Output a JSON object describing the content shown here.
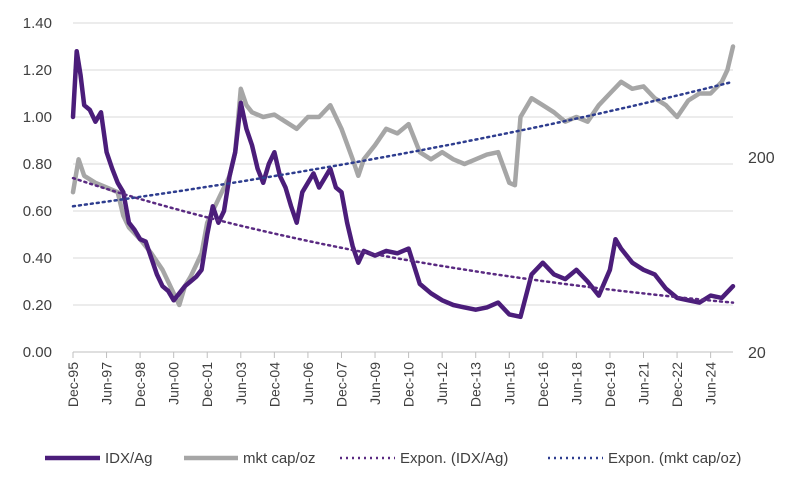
{
  "chart_data": {
    "type": "line",
    "title": "",
    "xlabel": "",
    "ylabel": "",
    "ylim": [
      0,
      1.4
    ],
    "y_ticks": [
      "0.00",
      "0.20",
      "0.40",
      "0.60",
      "0.80",
      "1.00",
      "1.20",
      "1.40"
    ],
    "y2_scale": "log",
    "y2_ticks": [
      "20",
      "200"
    ],
    "x_ticks": [
      "Dec-95",
      "Jun-97",
      "Dec-98",
      "Jun-00",
      "Dec-01",
      "Jun-03",
      "Dec-04",
      "Jun-06",
      "Dec-07",
      "Jun-09",
      "Dec-10",
      "Jun-12",
      "Dec-13",
      "Jun-15",
      "Dec-16",
      "Jun-18",
      "Dec-19",
      "Jun-21",
      "Dec-22",
      "Jun-24"
    ],
    "x_range": [
      "1995-12",
      "2025-06"
    ],
    "grid": "horizontal",
    "legend_position": "bottom",
    "colors": {
      "idx_ag": "#4b1d7a",
      "mkt_cap": "#a6a6a6",
      "trend_idx": "#5a2a82",
      "trend_mkt": "#2e3d8f"
    },
    "series": [
      {
        "name": "IDX/Ag",
        "axis": "left",
        "x": [
          "1995-12",
          "1996-02",
          "1996-04",
          "1996-06",
          "1996-09",
          "1996-12",
          "1997-03",
          "1997-06",
          "1997-09",
          "1997-12",
          "1998-03",
          "1998-06",
          "1998-09",
          "1998-12",
          "1999-03",
          "1999-06",
          "1999-09",
          "1999-12",
          "2000-03",
          "2000-06",
          "2000-09",
          "2000-12",
          "2001-03",
          "2001-06",
          "2001-09",
          "2001-12",
          "2002-03",
          "2002-06",
          "2002-09",
          "2002-12",
          "2003-03",
          "2003-06",
          "2003-09",
          "2003-12",
          "2004-03",
          "2004-06",
          "2004-09",
          "2004-12",
          "2005-03",
          "2005-06",
          "2005-09",
          "2005-12",
          "2006-03",
          "2006-06",
          "2006-09",
          "2006-12",
          "2007-03",
          "2007-06",
          "2007-09",
          "2007-12",
          "2008-03",
          "2008-06",
          "2008-09",
          "2008-12",
          "2009-06",
          "2009-12",
          "2010-06",
          "2010-12",
          "2011-06",
          "2011-12",
          "2012-06",
          "2012-12",
          "2013-06",
          "2013-12",
          "2014-06",
          "2014-12",
          "2015-06",
          "2015-12",
          "2016-06",
          "2016-12",
          "2017-06",
          "2017-12",
          "2018-06",
          "2018-12",
          "2019-06",
          "2019-12",
          "2020-03",
          "2020-06",
          "2020-12",
          "2021-06",
          "2021-12",
          "2022-06",
          "2022-12",
          "2023-06",
          "2023-12",
          "2024-06",
          "2024-12",
          "2025-06"
        ],
        "values": [
          1.0,
          1.28,
          1.18,
          1.05,
          1.03,
          0.98,
          1.02,
          0.85,
          0.78,
          0.72,
          0.68,
          0.55,
          0.52,
          0.48,
          0.47,
          0.4,
          0.33,
          0.28,
          0.26,
          0.22,
          0.25,
          0.28,
          0.3,
          0.32,
          0.35,
          0.5,
          0.62,
          0.55,
          0.6,
          0.75,
          0.85,
          1.06,
          0.95,
          0.88,
          0.78,
          0.72,
          0.8,
          0.85,
          0.75,
          0.7,
          0.62,
          0.55,
          0.68,
          0.72,
          0.76,
          0.7,
          0.74,
          0.78,
          0.7,
          0.68,
          0.55,
          0.45,
          0.38,
          0.43,
          0.41,
          0.43,
          0.42,
          0.44,
          0.29,
          0.25,
          0.22,
          0.2,
          0.19,
          0.18,
          0.19,
          0.21,
          0.16,
          0.15,
          0.33,
          0.38,
          0.33,
          0.31,
          0.35,
          0.3,
          0.24,
          0.35,
          0.48,
          0.44,
          0.38,
          0.35,
          0.33,
          0.27,
          0.23,
          0.22,
          0.21,
          0.24,
          0.23,
          0.28
        ]
      },
      {
        "name": "mkt cap/oz",
        "axis": "left",
        "x": [
          "1995-12",
          "1996-03",
          "1996-06",
          "1996-12",
          "1997-06",
          "1997-12",
          "1998-03",
          "1998-06",
          "1998-12",
          "1999-06",
          "1999-12",
          "2000-03",
          "2000-06",
          "2000-09",
          "2000-12",
          "2001-03",
          "2001-06",
          "2001-09",
          "2001-12",
          "2002-06",
          "2002-12",
          "2003-03",
          "2003-06",
          "2003-09",
          "2003-12",
          "2004-06",
          "2004-12",
          "2005-06",
          "2005-12",
          "2006-06",
          "2006-12",
          "2007-06",
          "2007-12",
          "2008-06",
          "2008-09",
          "2008-12",
          "2009-06",
          "2009-12",
          "2010-06",
          "2010-12",
          "2011-06",
          "2011-12",
          "2012-06",
          "2012-12",
          "2013-06",
          "2013-12",
          "2014-06",
          "2014-12",
          "2015-06",
          "2015-09",
          "2015-12",
          "2016-06",
          "2016-12",
          "2017-06",
          "2017-12",
          "2018-06",
          "2018-12",
          "2019-06",
          "2019-12",
          "2020-06",
          "2020-12",
          "2021-06",
          "2021-12",
          "2022-06",
          "2022-12",
          "2023-06",
          "2023-12",
          "2024-06",
          "2024-12",
          "2025-03",
          "2025-06"
        ],
        "values": [
          0.68,
          0.82,
          0.75,
          0.72,
          0.7,
          0.68,
          0.58,
          0.53,
          0.48,
          0.42,
          0.35,
          0.3,
          0.25,
          0.2,
          0.28,
          0.32,
          0.37,
          0.42,
          0.55,
          0.65,
          0.75,
          0.85,
          1.12,
          1.05,
          1.02,
          1.0,
          1.01,
          0.98,
          0.95,
          1.0,
          1.0,
          1.05,
          0.95,
          0.82,
          0.75,
          0.82,
          0.88,
          0.95,
          0.93,
          0.97,
          0.85,
          0.82,
          0.85,
          0.82,
          0.8,
          0.82,
          0.84,
          0.85,
          0.72,
          0.71,
          1.0,
          1.08,
          1.05,
          1.02,
          0.98,
          1.0,
          0.98,
          1.05,
          1.1,
          1.15,
          1.12,
          1.13,
          1.08,
          1.05,
          1.0,
          1.07,
          1.1,
          1.1,
          1.15,
          1.2,
          1.3
        ]
      },
      {
        "name": "Expon. (IDX/Ag)",
        "axis": "left",
        "style": "dotted",
        "x": [
          "1995-12",
          "2025-06"
        ],
        "values": [
          0.74,
          0.21
        ]
      },
      {
        "name": "Expon. (mkt cap/oz)",
        "axis": "left",
        "style": "dotted",
        "x": [
          "1995-12",
          "2025-06"
        ],
        "values": [
          0.62,
          1.15
        ]
      }
    ]
  }
}
